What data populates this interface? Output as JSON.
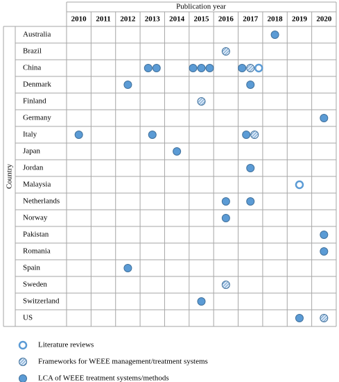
{
  "header": {
    "title": "Publication year",
    "row_label": "Country"
  },
  "years": [
    "2010",
    "2011",
    "2012",
    "2013",
    "2014",
    "2015",
    "2016",
    "2017",
    "2018",
    "2019",
    "2020"
  ],
  "legend": [
    {
      "label": "Literature reviews",
      "marker": "ring"
    },
    {
      "label": "Frameworks for WEEE management/treatment systems",
      "marker": "hatched"
    },
    {
      "label": "LCA of WEEE treatment systems/methods",
      "marker": "filled"
    }
  ],
  "rows": [
    {
      "country": "Australia",
      "marks": [
        {
          "year": "2018",
          "markers": [
            "filled"
          ]
        }
      ]
    },
    {
      "country": "Brazil",
      "marks": [
        {
          "year": "2016",
          "markers": [
            "hatched"
          ]
        }
      ]
    },
    {
      "country": "China",
      "marks": [
        {
          "year": "2013",
          "markers": [
            "filled",
            "filled"
          ]
        },
        {
          "year": "2015",
          "markers": [
            "filled",
            "filled",
            "filled"
          ]
        },
        {
          "year": "2017",
          "markers": [
            "filled",
            "hatched",
            "ring"
          ]
        }
      ]
    },
    {
      "country": "Denmark",
      "marks": [
        {
          "year": "2012",
          "markers": [
            "filled"
          ]
        },
        {
          "year": "2017",
          "markers": [
            "filled"
          ]
        }
      ]
    },
    {
      "country": "Finland",
      "marks": [
        {
          "year": "2015",
          "markers": [
            "hatched"
          ]
        }
      ]
    },
    {
      "country": "Germany",
      "marks": [
        {
          "year": "2020",
          "markers": [
            "filled"
          ]
        }
      ]
    },
    {
      "country": "Italy",
      "marks": [
        {
          "year": "2010",
          "markers": [
            "filled"
          ]
        },
        {
          "year": "2013",
          "markers": [
            "filled"
          ]
        },
        {
          "year": "2017",
          "markers": [
            "filled",
            "hatched"
          ]
        }
      ]
    },
    {
      "country": "Japan",
      "marks": [
        {
          "year": "2014",
          "markers": [
            "filled"
          ]
        }
      ]
    },
    {
      "country": "Jordan",
      "marks": [
        {
          "year": "2017",
          "markers": [
            "filled"
          ]
        }
      ]
    },
    {
      "country": "Malaysia",
      "marks": [
        {
          "year": "2019",
          "markers": [
            "ring"
          ]
        }
      ]
    },
    {
      "country": "Netherlands",
      "marks": [
        {
          "year": "2016",
          "markers": [
            "filled"
          ]
        },
        {
          "year": "2017",
          "markers": [
            "filled"
          ]
        }
      ]
    },
    {
      "country": "Norway",
      "marks": [
        {
          "year": "2016",
          "markers": [
            "filled"
          ]
        }
      ]
    },
    {
      "country": "Pakistan",
      "marks": [
        {
          "year": "2020",
          "markers": [
            "filled"
          ]
        }
      ]
    },
    {
      "country": "Romania",
      "marks": [
        {
          "year": "2020",
          "markers": [
            "filled"
          ]
        }
      ]
    },
    {
      "country": "Spain",
      "marks": [
        {
          "year": "2012",
          "markers": [
            "filled"
          ]
        }
      ]
    },
    {
      "country": "Sweden",
      "marks": [
        {
          "year": "2016",
          "markers": [
            "hatched"
          ]
        }
      ]
    },
    {
      "country": "Switzerland",
      "marks": [
        {
          "year": "2015",
          "markers": [
            "filled"
          ]
        }
      ]
    },
    {
      "country": "US",
      "marks": [
        {
          "year": "2019",
          "markers": [
            "filled"
          ]
        },
        {
          "year": "2020",
          "markers": [
            "hatched"
          ]
        }
      ]
    }
  ]
}
